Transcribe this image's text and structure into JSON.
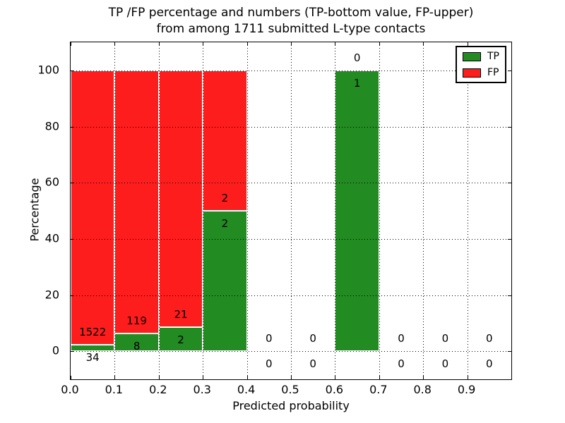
{
  "figure": {
    "title_line1": "TP /FP percentage and numbers (TP-bottom value, FP-upper)",
    "title_line2": "from among 1711 submitted L-type contacts"
  },
  "chart_data": {
    "type": "bar",
    "stacked": true,
    "title": "TP /FP percentage and numbers (TP-bottom value, FP-upper) from among 1711 submitted L-type contacts",
    "total_submitted_contacts": 1711,
    "xlabel": "Predicted probability",
    "ylabel": "Percentage",
    "xlim": [
      0.0,
      1.0
    ],
    "ylim": [
      -10,
      110
    ],
    "grid": "dotted",
    "legend_position": "upper right",
    "annotation_rule": "FP count above TP/FP boundary, TP count below boundary",
    "x_ticks": [
      {
        "v": 0.0,
        "label": "0.0"
      },
      {
        "v": 0.1,
        "label": "0.1"
      },
      {
        "v": 0.2,
        "label": "0.2"
      },
      {
        "v": 0.3,
        "label": "0.3"
      },
      {
        "v": 0.4,
        "label": "0.4"
      },
      {
        "v": 0.5,
        "label": "0.5"
      },
      {
        "v": 0.6,
        "label": "0.6"
      },
      {
        "v": 0.7,
        "label": "0.7"
      },
      {
        "v": 0.8,
        "label": "0.8"
      },
      {
        "v": 0.9,
        "label": "0.9"
      }
    ],
    "y_ticks": [
      {
        "v": 0,
        "label": "0"
      },
      {
        "v": 20,
        "label": "20"
      },
      {
        "v": 40,
        "label": "40"
      },
      {
        "v": 60,
        "label": "60"
      },
      {
        "v": 80,
        "label": "80"
      },
      {
        "v": 100,
        "label": "100"
      }
    ],
    "x_gridlines": [
      0.1,
      0.2,
      0.3,
      0.4,
      0.5,
      0.6,
      0.7,
      0.8,
      0.9
    ],
    "series": [
      {
        "name": "TP",
        "color": "#228b22"
      },
      {
        "name": "FP",
        "color": "#fd1d1d"
      }
    ],
    "bins": [
      {
        "x0": 0.0,
        "x1": 0.1,
        "tp_count": "34",
        "fp_count": "1522",
        "tp_pct": 2.19,
        "fp_pct": 97.81
      },
      {
        "x0": 0.1,
        "x1": 0.2,
        "tp_count": "8",
        "fp_count": "119",
        "tp_pct": 6.3,
        "fp_pct": 93.7
      },
      {
        "x0": 0.2,
        "x1": 0.3,
        "tp_count": "2",
        "fp_count": "21",
        "tp_pct": 8.7,
        "fp_pct": 91.3
      },
      {
        "x0": 0.3,
        "x1": 0.4,
        "tp_count": "2",
        "fp_count": "2",
        "tp_pct": 50.0,
        "fp_pct": 50.0
      },
      {
        "x0": 0.4,
        "x1": 0.5,
        "tp_count": "0",
        "fp_count": "0",
        "tp_pct": 0.0,
        "fp_pct": 0.0
      },
      {
        "x0": 0.5,
        "x1": 0.6,
        "tp_count": "0",
        "fp_count": "0",
        "tp_pct": 0.0,
        "fp_pct": 0.0
      },
      {
        "x0": 0.6,
        "x1": 0.7,
        "tp_count": "1",
        "fp_count": "0",
        "tp_pct": 100.0,
        "fp_pct": 0.0
      },
      {
        "x0": 0.7,
        "x1": 0.8,
        "tp_count": "0",
        "fp_count": "0",
        "tp_pct": 0.0,
        "fp_pct": 0.0
      },
      {
        "x0": 0.8,
        "x1": 0.9,
        "tp_count": "0",
        "fp_count": "0",
        "tp_pct": 0.0,
        "fp_pct": 0.0
      },
      {
        "x0": 0.9,
        "x1": 1.0,
        "tp_count": "0",
        "fp_count": "0",
        "tp_pct": 0.0,
        "fp_pct": 0.0
      }
    ]
  }
}
